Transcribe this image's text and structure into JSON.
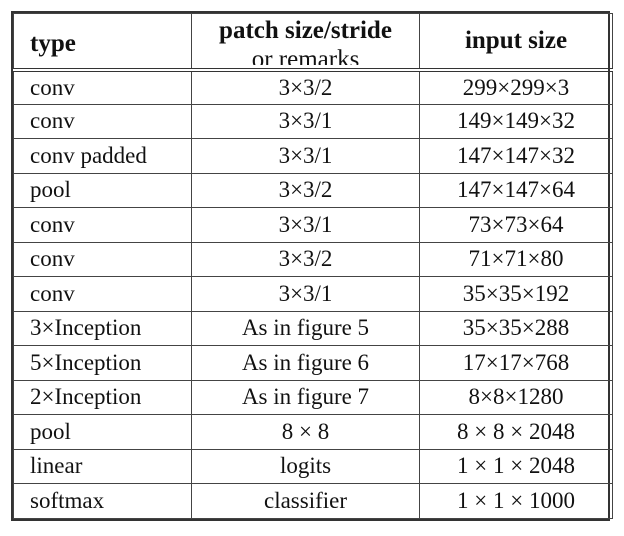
{
  "table": {
    "headers": {
      "type": "type",
      "patch_line1": "patch size/stride",
      "patch_line2": "or remarks",
      "input": "input size"
    },
    "rows": [
      {
        "type": "conv",
        "patch": "3×3/2",
        "input": "299×299×3"
      },
      {
        "type": "conv",
        "patch": "3×3/1",
        "input": "149×149×32"
      },
      {
        "type": "conv padded",
        "patch": "3×3/1",
        "input": "147×147×32"
      },
      {
        "type": "pool",
        "patch": "3×3/2",
        "input": "147×147×64"
      },
      {
        "type": "conv",
        "patch": "3×3/1",
        "input": "73×73×64"
      },
      {
        "type": "conv",
        "patch": "3×3/2",
        "input": "71×71×80"
      },
      {
        "type": "conv",
        "patch": "3×3/1",
        "input": "35×35×192"
      },
      {
        "type": "3×Inception",
        "patch": "As in figure 5",
        "input": "35×35×288"
      },
      {
        "type": "5×Inception",
        "patch": "As in figure 6",
        "input": "17×17×768"
      },
      {
        "type": "2×Inception",
        "patch": "As in figure 7",
        "input": "8×8×1280"
      },
      {
        "type": "pool",
        "patch": "8 × 8",
        "input": "8 × 8 × 2048"
      },
      {
        "type": "linear",
        "patch": "logits",
        "input": "1 × 1 × 2048"
      },
      {
        "type": "softmax",
        "patch": "classifier",
        "input": "1 × 1 × 1000"
      }
    ]
  }
}
